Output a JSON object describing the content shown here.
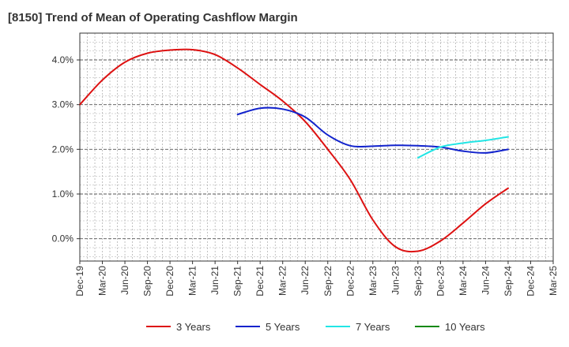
{
  "chart_data": {
    "type": "line",
    "title": "[8150]  Trend of Mean of Operating Cashflow Margin",
    "xlabel": "",
    "ylabel": "",
    "x_ticks": [
      "Dec-19",
      "Mar-20",
      "Jun-20",
      "Sep-20",
      "Dec-20",
      "Mar-21",
      "Jun-21",
      "Sep-21",
      "Dec-21",
      "Mar-22",
      "Jun-22",
      "Sep-22",
      "Dec-22",
      "Mar-23",
      "Jun-23",
      "Sep-23",
      "Dec-23",
      "Mar-24",
      "Jun-24",
      "Sep-24",
      "Dec-24",
      "Mar-25"
    ],
    "y_ticks": [
      "0.0%",
      "1.0%",
      "2.0%",
      "3.0%",
      "4.0%"
    ],
    "ylim": [
      -0.5,
      4.6
    ],
    "grid": true,
    "legend_position": "bottom",
    "series": [
      {
        "name": "3 Years",
        "color": "#dd1111",
        "x": [
          "Dec-19",
          "Mar-20",
          "Jun-20",
          "Sep-20",
          "Dec-20",
          "Mar-21",
          "Jun-21",
          "Sep-21",
          "Dec-21",
          "Mar-22",
          "Jun-22",
          "Sep-22",
          "Dec-22",
          "Mar-23",
          "Jun-23",
          "Sep-23",
          "Dec-23",
          "Mar-24",
          "Jun-24",
          "Sep-24"
        ],
        "values": [
          3.0,
          3.55,
          3.95,
          4.15,
          4.22,
          4.23,
          4.12,
          3.82,
          3.45,
          3.08,
          2.62,
          2.0,
          1.32,
          0.42,
          -0.18,
          -0.28,
          -0.05,
          0.35,
          0.78,
          1.13
        ]
      },
      {
        "name": "5 Years",
        "color": "#1122cc",
        "x": [
          "Sep-21",
          "Dec-21",
          "Mar-22",
          "Jun-22",
          "Sep-22",
          "Dec-22",
          "Mar-23",
          "Jun-23",
          "Sep-23",
          "Dec-23",
          "Mar-24",
          "Jun-24",
          "Sep-24"
        ],
        "values": [
          2.78,
          2.92,
          2.9,
          2.72,
          2.32,
          2.08,
          2.07,
          2.09,
          2.08,
          2.05,
          1.96,
          1.92,
          2.0
        ]
      },
      {
        "name": "7 Years",
        "color": "#22e5e5",
        "x": [
          "Sep-23",
          "Dec-23",
          "Mar-24",
          "Jun-24",
          "Sep-24"
        ],
        "values": [
          1.81,
          2.05,
          2.14,
          2.2,
          2.28
        ]
      },
      {
        "name": "10 Years",
        "color": "#118811",
        "x": [],
        "values": []
      }
    ]
  }
}
